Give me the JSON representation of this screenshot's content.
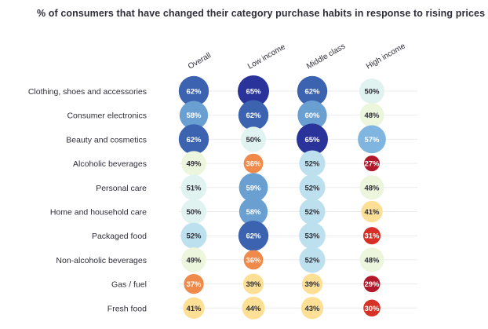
{
  "chart_data": {
    "type": "heatmap",
    "title": "% of consumers that have changed their category purchase habits in response to rising prices",
    "columns": [
      "Overall",
      "Low income",
      "Middle class",
      "High income"
    ],
    "rows": [
      "Clothing, shoes and accessories",
      "Consumer electronics",
      "Beauty and cosmetics",
      "Alcoholic beverages",
      "Personal care",
      "Home and household care",
      "Packaged food",
      "Non-alcoholic beverages",
      "Gas / fuel",
      "Fresh food"
    ],
    "values": [
      [
        62,
        65,
        62,
        50
      ],
      [
        58,
        62,
        60,
        48
      ],
      [
        62,
        50,
        65,
        57
      ],
      [
        49,
        36,
        52,
        27
      ],
      [
        51,
        59,
        52,
        48
      ],
      [
        50,
        58,
        52,
        41
      ],
      [
        52,
        62,
        53,
        31
      ],
      [
        49,
        36,
        52,
        48
      ],
      [
        37,
        39,
        39,
        29
      ],
      [
        41,
        44,
        43,
        30
      ]
    ],
    "value_suffix": "%",
    "color_scale": [
      {
        "max": 29,
        "color": "#b2182b",
        "text": "#ffffff"
      },
      {
        "max": 34,
        "color": "#d73027",
        "text": "#ffffff"
      },
      {
        "max": 38,
        "color": "#f08a4b",
        "text": "#ffffff"
      },
      {
        "max": 46,
        "color": "#fde095",
        "text": "#2e2e38"
      },
      {
        "max": 49,
        "color": "#ecf6dc",
        "text": "#2e2e38"
      },
      {
        "max": 51,
        "color": "#e1f3f1",
        "text": "#2e2e38"
      },
      {
        "max": 55,
        "color": "#bde0ee",
        "text": "#2e2e38"
      },
      {
        "max": 57,
        "color": "#7fb5de",
        "text": "#ffffff"
      },
      {
        "max": 60,
        "color": "#6a9fd2",
        "text": "#ffffff"
      },
      {
        "max": 63,
        "color": "#3b63b0",
        "text": "#ffffff"
      },
      {
        "max": 100,
        "color": "#2a339a",
        "text": "#ffffff"
      }
    ]
  }
}
